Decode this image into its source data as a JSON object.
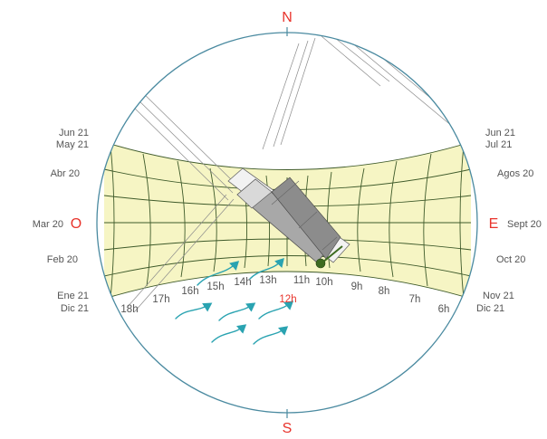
{
  "cardinal": {
    "north": "N",
    "south": "S",
    "east": "E",
    "west": "O"
  },
  "dates_left": [
    "Jun 21",
    "May 21",
    "Abr 20",
    "Mar 20",
    "Feb 20",
    "Ene 21",
    "Dic 21"
  ],
  "dates_right": [
    "Jun 21",
    "Jul 21",
    "Agos 20",
    "Sept 20",
    "Oct 20",
    "Nov 21",
    "Dic 21"
  ],
  "hours": [
    "18h",
    "17h",
    "16h",
    "15h",
    "14h",
    "13h",
    "12h",
    "11h",
    "10h",
    "9h",
    "8h",
    "7h",
    "6h"
  ],
  "colors": {
    "circle": "#4a8aa0",
    "band_fill": "#f6f5c4",
    "grid": "#3e5a2a",
    "accent_red": "#e8332b",
    "wind": "#2aa3b1",
    "building": "#9a9a9a"
  }
}
